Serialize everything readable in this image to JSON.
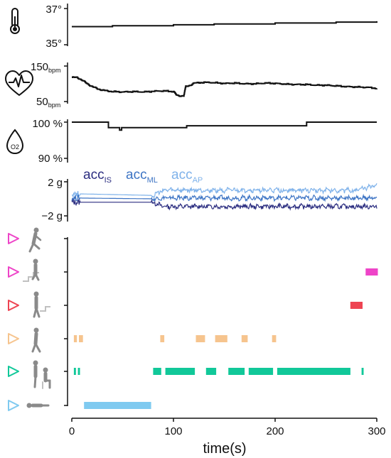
{
  "chart_data": [
    {
      "type": "line",
      "icon": "thermometer-icon",
      "ylim": [
        35,
        37
      ],
      "ytick_labels": [
        "37°",
        "35°"
      ],
      "series": [
        {
          "color": "#111111",
          "x": [
            0,
            20,
            40,
            60,
            80,
            100,
            120,
            140,
            160,
            180,
            200,
            220,
            240,
            260,
            280,
            300
          ],
          "y": [
            36.0,
            36.0,
            36.05,
            36.05,
            36.05,
            36.1,
            36.1,
            36.15,
            36.15,
            36.15,
            36.2,
            36.2,
            36.2,
            36.25,
            36.25,
            36.3
          ]
        }
      ]
    },
    {
      "type": "line",
      "icon": "heart-rate-icon",
      "ylim": [
        50,
        150
      ],
      "ytick_labels": [
        {
          "value": "150",
          "unit": "bpm"
        },
        {
          "value": "50",
          "unit": "bpm"
        }
      ],
      "series": [
        {
          "color": "#111111",
          "x": [
            0,
            5,
            10,
            15,
            20,
            25,
            30,
            35,
            40,
            50,
            60,
            70,
            80,
            90,
            100,
            103,
            105,
            110,
            112,
            115,
            120,
            130,
            140,
            150,
            160,
            170,
            180,
            190,
            200,
            210,
            220,
            230,
            240,
            250,
            260,
            270,
            280,
            290,
            300
          ],
          "y": [
            118,
            118,
            110,
            100,
            92,
            86,
            82,
            80,
            78,
            77,
            78,
            77,
            79,
            80,
            78,
            68,
            66,
            66,
            92,
            94,
            102,
            104,
            103,
            101,
            102,
            100,
            100,
            102,
            101,
            99,
            98,
            98,
            96,
            96,
            94,
            92,
            91,
            90,
            87
          ]
        }
      ]
    },
    {
      "type": "line",
      "icon": "oxygen-drop-icon",
      "icon_label": "O2",
      "ylim": [
        90,
        100
      ],
      "ytick_labels": [
        "100 %",
        "90 %"
      ],
      "series": [
        {
          "color": "#111111",
          "x": [
            0,
            35,
            36,
            46,
            47,
            48,
            49,
            112,
            113,
            230,
            231,
            300
          ],
          "y": [
            100,
            100,
            98.5,
            98.5,
            97.8,
            97.8,
            98.5,
            98.5,
            99,
            99,
            100,
            100
          ]
        }
      ]
    },
    {
      "type": "line",
      "ylim": [
        -2,
        2
      ],
      "ytick_labels": [
        "2 g",
        "−2 g"
      ],
      "legend": [
        {
          "name": "acc",
          "sub": "IS",
          "color": "#2b2d80"
        },
        {
          "name": "acc",
          "sub": "ML",
          "color": "#3d74c4"
        },
        {
          "name": "acc",
          "sub": "AP",
          "color": "#7fb2ea"
        }
      ],
      "series": [
        {
          "name": "accIS",
          "color": "#2b2d80",
          "baseline": [
            [
              0,
              -0.4
            ],
            [
              80,
              -0.4
            ],
            [
              90,
              -0.9
            ],
            [
              300,
              -0.9
            ]
          ],
          "noise_after": 78
        },
        {
          "name": "accML",
          "color": "#3d74c4",
          "baseline": [
            [
              0,
              0.1
            ],
            [
              80,
              0.0
            ],
            [
              90,
              0.1
            ],
            [
              300,
              0.1
            ]
          ],
          "noise_after": 78
        },
        {
          "name": "accAP",
          "color": "#7fb2ea",
          "baseline": [
            [
              0,
              0.6
            ],
            [
              80,
              0.4
            ],
            [
              90,
              1.0
            ],
            [
              280,
              1.0
            ],
            [
              300,
              1.6
            ]
          ],
          "noise_after": 78
        }
      ]
    },
    {
      "type": "gantt",
      "xlim": [
        0,
        300
      ],
      "xticks": [
        0,
        100,
        200,
        300
      ],
      "xlabel": "time(s)",
      "rows": [
        {
          "activity": "running",
          "icon": "running-person-icon",
          "color": "#ee44c8",
          "segments": []
        },
        {
          "activity": "stairs-up",
          "icon": "stairs-up-icon",
          "color": "#ee44c8",
          "segments": [
            [
              289,
              301
            ]
          ]
        },
        {
          "activity": "stairs-down",
          "icon": "stairs-down-icon",
          "color": "#ee4452",
          "segments": [
            [
              274,
              286
            ]
          ]
        },
        {
          "activity": "walking",
          "icon": "walking-person-icon",
          "color": "#f6c48e",
          "segments": [
            [
              2,
              5
            ],
            [
              7,
              11
            ],
            [
              87,
              91
            ],
            [
              122,
              131
            ],
            [
              141,
              153
            ],
            [
              167,
              173
            ],
            [
              197,
              201
            ]
          ]
        },
        {
          "activity": "sitting-standing",
          "icon": "sit-stand-icon",
          "color": "#11c899",
          "segments": [
            [
              2,
              4
            ],
            [
              6,
              8
            ],
            [
              80,
              88
            ],
            [
              92,
              121
            ],
            [
              132,
              142
            ],
            [
              154,
              170
            ],
            [
              174,
              198
            ],
            [
              202,
              274
            ],
            [
              285,
              287
            ]
          ]
        },
        {
          "activity": "lying",
          "icon": "lying-person-icon",
          "color": "#7fcaf0",
          "segments": [
            [
              12,
              78
            ]
          ]
        }
      ]
    }
  ]
}
